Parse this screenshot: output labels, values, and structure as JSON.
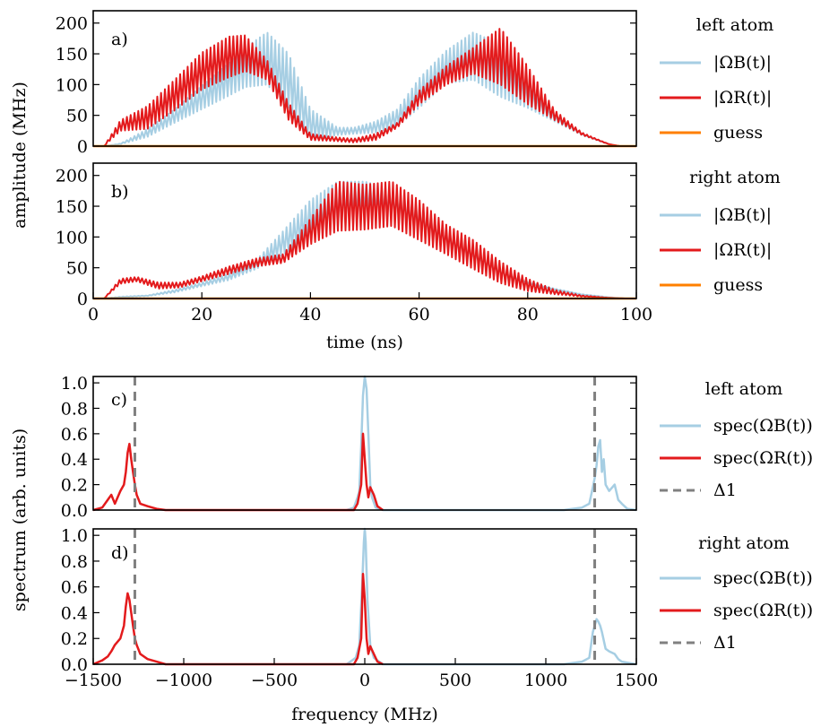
{
  "colors": {
    "blue": "#a6cee3",
    "red": "#e31a1c",
    "orange": "#ff7f00",
    "dash": "#808080"
  },
  "top": {
    "ylabel": "amplitude (MHz)",
    "xlabel": "time (ns)",
    "xticks": [
      "0",
      "20",
      "40",
      "60",
      "80",
      "100"
    ],
    "yticks": [
      "0",
      "50",
      "100",
      "150",
      "200"
    ],
    "panels": [
      {
        "tag": "a)",
        "legend_title": "left atom",
        "legend": [
          "|ΩB(t)|",
          "|ΩR(t)|",
          "guess"
        ]
      },
      {
        "tag": "b)",
        "legend_title": "right atom",
        "legend": [
          "|ΩB(t)|",
          "|ΩR(t)|",
          "guess"
        ]
      }
    ]
  },
  "bottom": {
    "ylabel": "spectrum (arb. units)",
    "xlabel": "frequency (MHz)",
    "xticks": [
      "−1500",
      "−1000",
      "−500",
      "0",
      "500",
      "1000",
      "1500"
    ],
    "yticks": [
      "0.0",
      "0.2",
      "0.4",
      "0.6",
      "0.8",
      "1.0"
    ],
    "panels": [
      {
        "tag": "c)",
        "legend_title": "left atom",
        "legend": [
          "spec(ΩB(t))",
          "spec(ΩR(t))",
          "Δ1"
        ]
      },
      {
        "tag": "d)",
        "legend_title": "right atom",
        "legend": [
          "spec(ΩB(t))",
          "spec(ΩR(t))",
          "Δ1"
        ]
      }
    ]
  },
  "chart_data": [
    {
      "type": "area",
      "panel": "a",
      "xlim": [
        0,
        100
      ],
      "ylim": [
        0,
        220
      ],
      "series": [
        {
          "name": "|ΩB(t)|",
          "x": [
            2,
            5,
            10,
            15,
            20,
            25,
            28,
            32,
            36,
            40,
            45,
            48,
            52,
            56,
            60,
            65,
            70,
            75,
            80,
            85,
            90,
            95,
            97
          ],
          "low": [
            0,
            3,
            15,
            38,
            60,
            82,
            96,
            100,
            62,
            10,
            18,
            20,
            22,
            32,
            62,
            102,
            108,
            80,
            62,
            40,
            18,
            3,
            0
          ],
          "high": [
            0,
            4,
            28,
            60,
            98,
            135,
            160,
            185,
            150,
            60,
            30,
            30,
            40,
            60,
            110,
            155,
            185,
            165,
            105,
            52,
            20,
            3,
            0
          ]
        },
        {
          "name": "|ΩR(t)|",
          "x": [
            2,
            5,
            10,
            15,
            20,
            25,
            28,
            32,
            36,
            40,
            45,
            48,
            52,
            56,
            60,
            65,
            70,
            75,
            80,
            85,
            90,
            95,
            97
          ],
          "low": [
            0,
            25,
            28,
            58,
            92,
            112,
            122,
            108,
            42,
            10,
            8,
            6,
            10,
            30,
            68,
            100,
            118,
            100,
            68,
            42,
            18,
            3,
            0
          ],
          "high": [
            0,
            42,
            65,
            108,
            152,
            178,
            180,
            140,
            70,
            20,
            14,
            12,
            20,
            38,
            90,
            130,
            160,
            192,
            130,
            58,
            22,
            3,
            0
          ]
        },
        {
          "name": "guess",
          "x": [
            0,
            100
          ],
          "y": [
            0,
            0
          ]
        }
      ]
    },
    {
      "type": "area",
      "panel": "b",
      "xlim": [
        0,
        100
      ],
      "ylim": [
        0,
        220
      ],
      "series": [
        {
          "name": "|ΩB(t)|",
          "x": [
            2,
            5,
            10,
            15,
            20,
            25,
            30,
            35,
            40,
            45,
            50,
            55,
            60,
            65,
            70,
            75,
            80,
            85,
            90,
            95,
            98
          ],
          "low": [
            0,
            2,
            4,
            10,
            20,
            30,
            48,
            72,
            100,
            110,
            140,
            132,
            110,
            85,
            62,
            40,
            25,
            14,
            6,
            2,
            0
          ],
          "high": [
            0,
            3,
            5,
            14,
            26,
            40,
            62,
            110,
            160,
            190,
            190,
            178,
            150,
            108,
            75,
            45,
            28,
            16,
            7,
            2,
            0
          ]
        },
        {
          "name": "|ΩR(t)|",
          "x": [
            2,
            5,
            8,
            12,
            16,
            20,
            25,
            30,
            35,
            40,
            45,
            50,
            55,
            60,
            65,
            70,
            75,
            80,
            85,
            90,
            95,
            98
          ],
          "low": [
            0,
            24,
            28,
            16,
            18,
            28,
            40,
            52,
            58,
            88,
            110,
            112,
            118,
            95,
            72,
            48,
            25,
            12,
            7,
            3,
            1,
            0
          ],
          "high": [
            0,
            32,
            35,
            26,
            26,
            36,
            52,
            65,
            72,
            130,
            190,
            185,
            190,
            160,
            120,
            95,
            60,
            32,
            14,
            5,
            1,
            0
          ]
        },
        {
          "name": "guess",
          "x": [
            0,
            100
          ],
          "y": [
            0,
            0
          ]
        }
      ]
    },
    {
      "type": "line",
      "panel": "c",
      "xlim": [
        -1500,
        1500
      ],
      "ylim": [
        0,
        1.05
      ],
      "series": [
        {
          "name": "spec(ΩB(t))",
          "x": [
            -100,
            -60,
            -40,
            -30,
            -20,
            -10,
            0,
            10,
            20,
            30,
            40,
            60,
            100,
            1100,
            1200,
            1240,
            1260,
            1270,
            1280,
            1290,
            1300,
            1310,
            1320,
            1330,
            1350,
            1380,
            1400,
            1420,
            1450,
            1500
          ],
          "y": [
            0,
            0.02,
            0.1,
            0.15,
            0.5,
            0.9,
            1.05,
            0.95,
            0.6,
            0.2,
            0.1,
            0.02,
            0,
            0,
            0.02,
            0.05,
            0.18,
            0.25,
            0.35,
            0.5,
            0.55,
            0.3,
            0.4,
            0.2,
            0.15,
            0.2,
            0.08,
            0.05,
            0.01,
            0
          ]
        },
        {
          "name": "spec(ΩR(t))",
          "x": [
            -1500,
            -1450,
            -1420,
            -1400,
            -1380,
            -1350,
            -1330,
            -1320,
            -1310,
            -1300,
            -1290,
            -1280,
            -1270,
            -1260,
            -1240,
            -1200,
            -1150,
            -1100,
            -60,
            -40,
            -20,
            -10,
            0,
            10,
            20,
            30,
            50,
            70,
            100
          ],
          "y": [
            0,
            0.02,
            0.08,
            0.12,
            0.05,
            0.15,
            0.2,
            0.3,
            0.45,
            0.52,
            0.4,
            0.3,
            0.2,
            0.12,
            0.05,
            0.03,
            0.01,
            0,
            0,
            0.05,
            0.2,
            0.6,
            0.4,
            0.2,
            0.1,
            0.18,
            0.12,
            0.03,
            0
          ]
        },
        {
          "name": "Δ1",
          "x": [
            -1270,
            1270
          ],
          "style": "dashed-vertical"
        }
      ]
    },
    {
      "type": "line",
      "panel": "d",
      "xlim": [
        -1500,
        1500
      ],
      "ylim": [
        0,
        1.05
      ],
      "series": [
        {
          "name": "spec(ΩB(t))",
          "x": [
            -100,
            -50,
            -30,
            -15,
            -5,
            0,
            5,
            15,
            30,
            50,
            100,
            1100,
            1200,
            1240,
            1260,
            1280,
            1290,
            1300,
            1310,
            1330,
            1350,
            1380,
            1400,
            1420,
            1500
          ],
          "y": [
            0,
            0.05,
            0.15,
            0.6,
            0.95,
            1.05,
            0.95,
            0.5,
            0.15,
            0.05,
            0,
            0,
            0.02,
            0.05,
            0.25,
            0.35,
            0.33,
            0.3,
            0.25,
            0.12,
            0.1,
            0.08,
            0.04,
            0.02,
            0
          ]
        },
        {
          "name": "spec(ΩR(t))",
          "x": [
            -1500,
            -1450,
            -1420,
            -1400,
            -1380,
            -1350,
            -1330,
            -1320,
            -1310,
            -1300,
            -1290,
            -1280,
            -1270,
            -1260,
            -1240,
            -1200,
            -1150,
            -1100,
            -60,
            -40,
            -20,
            -10,
            0,
            10,
            20,
            30,
            50,
            70,
            100
          ],
          "y": [
            0,
            0.03,
            0.06,
            0.1,
            0.15,
            0.2,
            0.3,
            0.45,
            0.55,
            0.5,
            0.4,
            0.3,
            0.2,
            0.15,
            0.08,
            0.04,
            0.02,
            0,
            0,
            0.05,
            0.2,
            0.7,
            0.5,
            0.2,
            0.08,
            0.14,
            0.08,
            0.02,
            0
          ]
        },
        {
          "name": "Δ1",
          "x": [
            -1270,
            1270
          ],
          "style": "dashed-vertical"
        }
      ]
    }
  ]
}
